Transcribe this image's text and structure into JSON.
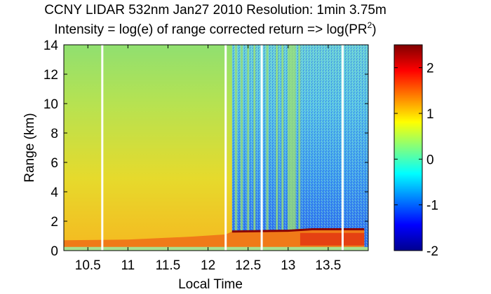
{
  "chart_data": {
    "type": "heatmap",
    "title": "CCNY LIDAR 532nm Jan27 2010 Resolution: 1min 3.75m",
    "subtitle_main": "Intensity = log(e) of range corrected return => log(PR",
    "subtitle_sup": "2",
    "subtitle_end": ")",
    "xlabel": "Local Time",
    "ylabel": "Range (km)",
    "xlim": [
      10.2,
      14.0
    ],
    "ylim": [
      0,
      14
    ],
    "x_ticks": [
      "10.5",
      "11",
      "11.5",
      "12",
      "12.5",
      "13",
      "13.5"
    ],
    "x_tick_values": [
      10.5,
      11,
      11.5,
      12,
      12.5,
      13,
      13.5
    ],
    "y_ticks": [
      "0",
      "2",
      "4",
      "6",
      "8",
      "10",
      "12",
      "14"
    ],
    "y_tick_values": [
      0,
      2,
      4,
      6,
      8,
      10,
      12,
      14
    ],
    "colorbar": {
      "range": [
        -2,
        2.5
      ],
      "ticks": [
        "-2",
        "-1",
        "0",
        "1",
        "2"
      ],
      "tick_values": [
        -2,
        -1,
        0,
        1,
        2
      ],
      "colormap": "jet"
    },
    "data_gaps_local_time": [
      10.68,
      12.22,
      12.67,
      13.68
    ],
    "boundary_layer_top_km": [
      [
        10.2,
        0.7
      ],
      [
        11.0,
        0.75
      ],
      [
        11.8,
        0.95
      ],
      [
        12.22,
        1.1
      ],
      [
        12.3,
        1.3
      ],
      [
        13.0,
        1.35
      ],
      [
        13.3,
        1.45
      ],
      [
        13.95,
        1.45
      ]
    ],
    "cloud_columns_local_time": [
      12.35,
      12.42,
      12.5,
      12.58,
      12.74,
      12.86,
      12.93,
      13.02,
      13.07,
      13.14
    ]
  }
}
